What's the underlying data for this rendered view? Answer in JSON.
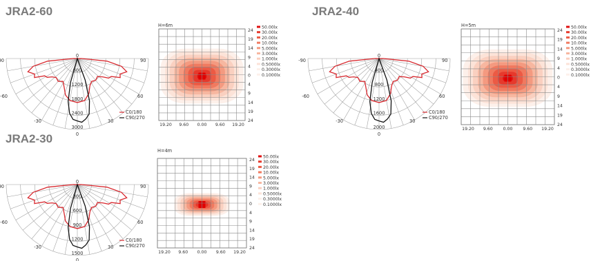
{
  "colors": {
    "c0_180": "#d8282e",
    "c90_270": "#111111",
    "iso": [
      "#e01010",
      "#e6392c",
      "#ec5a44",
      "#f07a60",
      "#f49a80",
      "#f7b7a0",
      "#fad0c0",
      "#fce3d8",
      "#fdf0ea"
    ]
  },
  "panels": [
    {
      "title": "JRA2-60",
      "height_label": "H=6m",
      "polar_angle_labels": {
        "left_outer": "-90",
        "right_outer": "90",
        "left_mid": "-60",
        "right_mid": "60",
        "left_low": "-30",
        "right_low": "30",
        "bottom": "0",
        "top": "0"
      },
      "polar_radial_labels": [
        "600",
        "1200",
        "1800",
        "2400",
        "3000"
      ],
      "legend": [
        "C0/180",
        "C90/270"
      ],
      "iso_y_labels": [
        "24",
        "19",
        "14",
        "9",
        "4",
        "0",
        "4",
        "9",
        "14",
        "19",
        "24"
      ],
      "iso_x_labels": [
        "19.20",
        "9.60",
        "0.00",
        "9.60",
        "19.20"
      ],
      "iso_levels": [
        "50.00lx",
        "30.00lx",
        "20.00lx",
        "10.00lx",
        "5.000lx",
        "3.000lx",
        "1.000lx",
        "0.5000lx",
        "0.3000lx",
        "0.1000lx"
      ],
      "iso_spread": "wide"
    },
    {
      "title": "JRA2-40",
      "height_label": "H=5m",
      "polar_angle_labels": {
        "left_outer": "-90",
        "right_outer": "90",
        "left_mid": "-60",
        "right_mid": "60",
        "left_low": "-30",
        "right_low": "30",
        "bottom": "0",
        "top": "0"
      },
      "polar_radial_labels": [
        "400",
        "800",
        "1200",
        "1600",
        "2000"
      ],
      "legend": [
        "C0/180",
        "C90/270"
      ],
      "iso_y_labels": [
        "24",
        "19",
        "14",
        "9",
        "4",
        "0",
        "4",
        "9",
        "14",
        "19",
        "24"
      ],
      "iso_x_labels": [
        "19.20",
        "9.60",
        "0.00",
        "9.60",
        "19.20"
      ],
      "iso_levels": [
        "50.00lx",
        "30.00lx",
        "20.00lx",
        "10.00lx",
        "5.000lx",
        "3.000lx",
        "1.000lx",
        "0.5000lx",
        "0.3000lx",
        "0.1000lx"
      ],
      "iso_spread": "wide"
    },
    {
      "title": "JRA2-30",
      "height_label": "H=4m",
      "polar_angle_labels": {
        "left_outer": "-90",
        "right_outer": "90",
        "left_mid": "-60",
        "right_mid": "60",
        "left_low": "-30",
        "right_low": "30",
        "bottom": "0",
        "top": "0"
      },
      "polar_radial_labels": [
        "300",
        "600",
        "900",
        "1200",
        "1500"
      ],
      "legend": [
        "C0/180",
        "C90/270"
      ],
      "iso_y_labels": [
        "24",
        "19",
        "14",
        "9",
        "4",
        "0",
        "4",
        "9",
        "14",
        "19",
        "24"
      ],
      "iso_x_labels": [
        "19.20",
        "9.60",
        "0.00",
        "9.60",
        "19.20"
      ],
      "iso_levels": [
        "50.00lx",
        "30.00lx",
        "20.00lx",
        "10.00lx",
        "5.000lx",
        "3.000lx",
        "1.000lx",
        "0.5000lx",
        "0.3000lx",
        "0.1000lx"
      ],
      "iso_spread": "narrow"
    }
  ]
}
